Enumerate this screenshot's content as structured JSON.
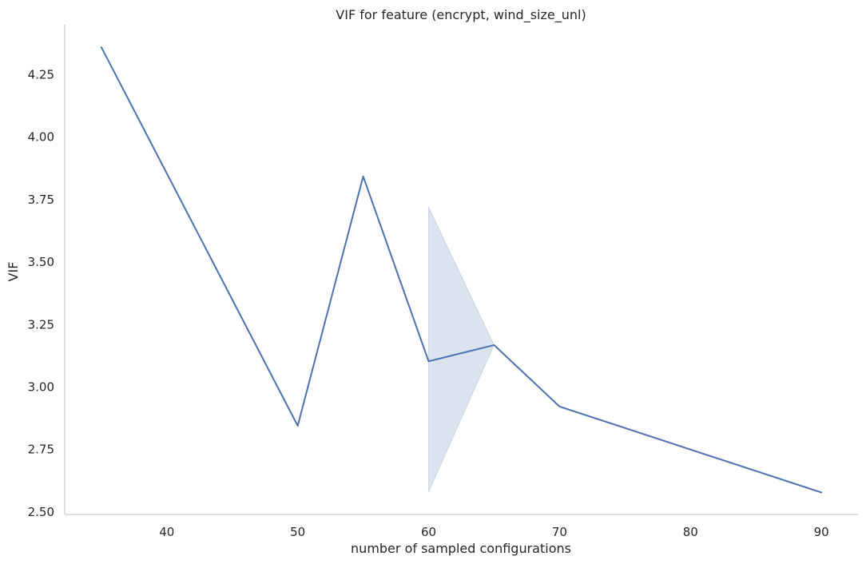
{
  "chart_data": {
    "type": "line",
    "title": "VIF for feature (encrypt, wind_size_unl)",
    "xlabel": "number of sampled configurations",
    "ylabel": "VIF",
    "xlim": [
      32.2,
      92.8
    ],
    "ylim": [
      2.49,
      4.45
    ],
    "xticks": [
      40,
      50,
      60,
      70,
      80,
      90
    ],
    "yticks": [
      2.5,
      2.75,
      3.0,
      3.25,
      3.5,
      3.75,
      4.0,
      4.25
    ],
    "ytick_labels": [
      "2.50",
      "2.75",
      "3.00",
      "3.25",
      "3.50",
      "3.75",
      "4.00",
      "4.25"
    ],
    "grid": false,
    "series": [
      {
        "x": [
          35,
          50,
          55,
          60,
          65,
          70,
          90
        ],
        "y": [
          4.36,
          2.845,
          3.843,
          3.103,
          3.168,
          2.922,
          2.578
        ],
        "color": "#4c72b0"
      }
    ],
    "confidence_band": {
      "x": [
        60,
        65
      ],
      "lower": [
        2.58,
        3.168
      ],
      "upper": [
        3.72,
        3.168
      ],
      "color": "#4c72b0",
      "opacity": 0.2
    }
  }
}
